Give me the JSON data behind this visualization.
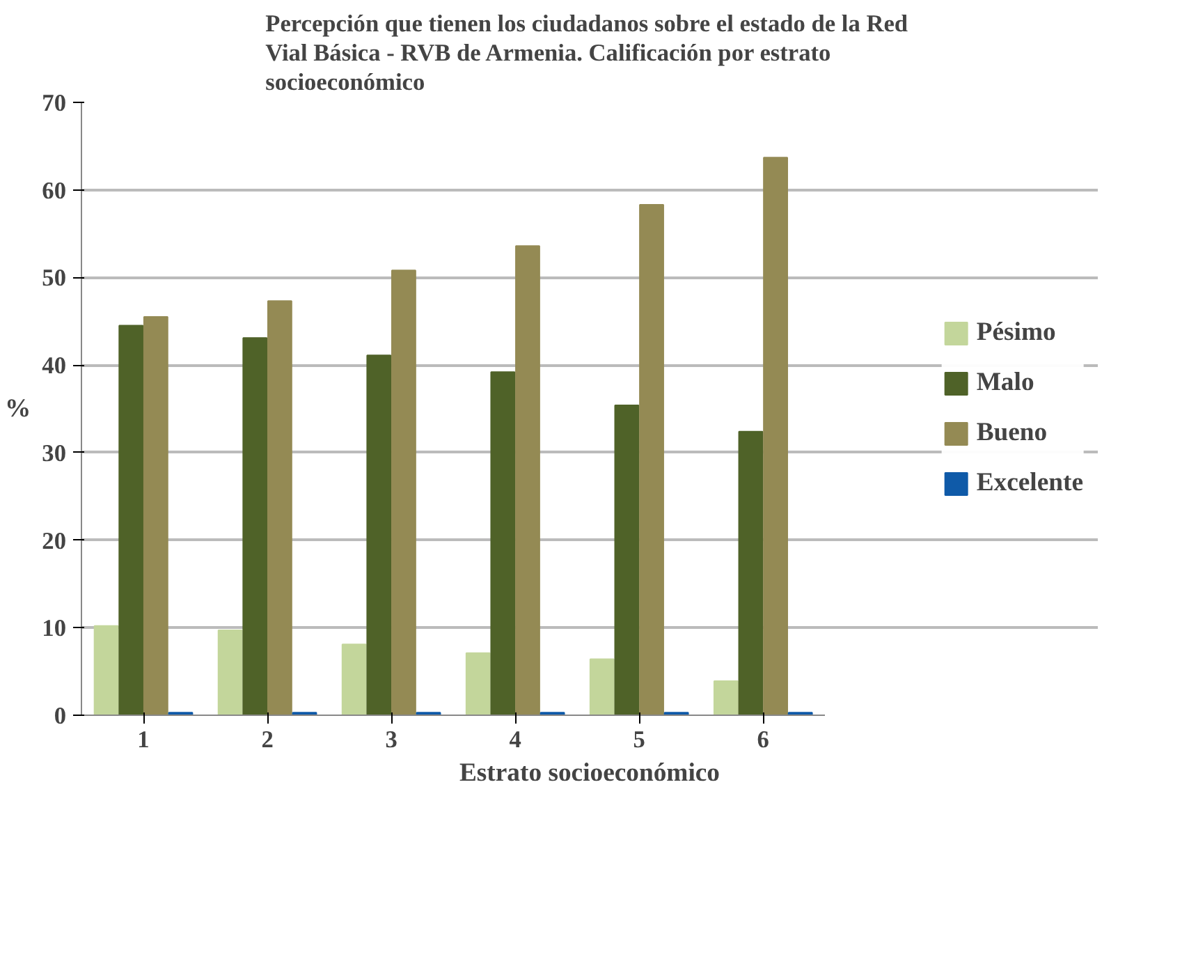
{
  "chart_data": {
    "type": "bar",
    "title": "Percepción que tienen los ciudadanos  sobre el estado de la Red\nVial Básica - RVB de Armenia. Calificación por estrato\nsocioeconómico",
    "xlabel": "Estrato socioeconómico",
    "ylabel": "%",
    "categories": [
      "1",
      "2",
      "3",
      "4",
      "5",
      "6"
    ],
    "series": [
      {
        "name": "Pésimo",
        "color": "#c3d69b",
        "values": [
          10.2,
          9.7,
          8.1,
          7.1,
          6.4,
          3.9
        ]
      },
      {
        "name": "Malo",
        "color": "#4f6228",
        "values": [
          44.5,
          43.1,
          41.1,
          39.2,
          35.4,
          32.4
        ]
      },
      {
        "name": "Bueno",
        "color": "#948a54",
        "values": [
          45.5,
          47.3,
          50.8,
          53.6,
          58.3,
          63.7
        ]
      },
      {
        "name": "Excelente",
        "color": "#0f5aa8",
        "values": [
          0.3,
          0.3,
          0.3,
          0.3,
          0.3,
          0.3
        ]
      }
    ],
    "ylim": [
      0,
      70
    ],
    "yticks": [
      0,
      10,
      20,
      30,
      40,
      50,
      60,
      70
    ],
    "grid": "y",
    "legend": "right"
  }
}
